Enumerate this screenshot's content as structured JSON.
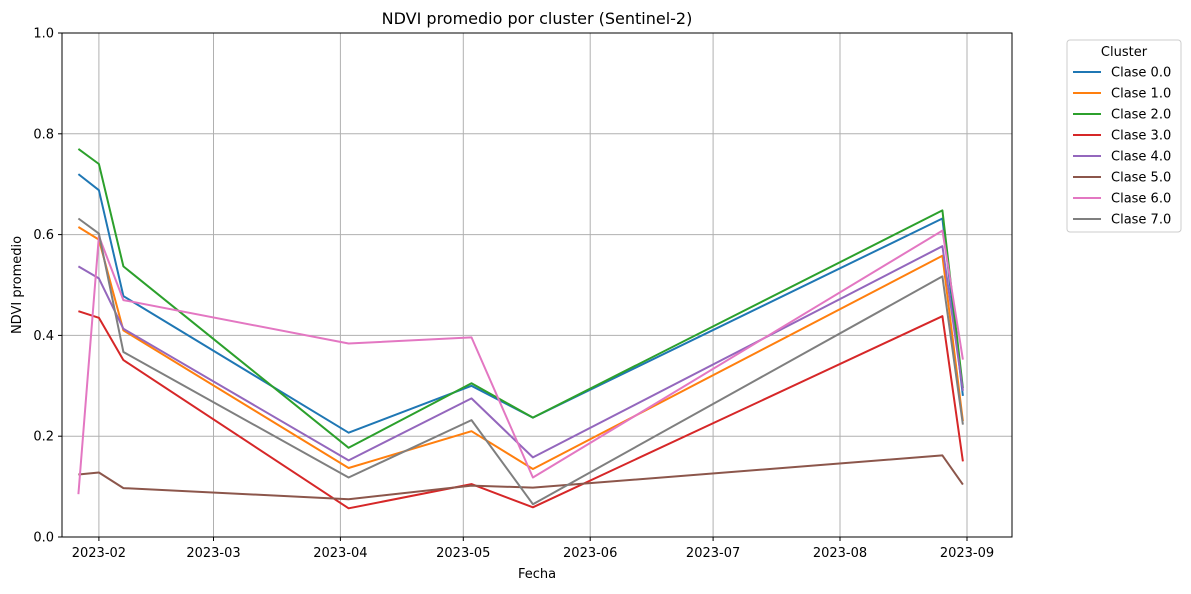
{
  "chart_data": {
    "type": "line",
    "title": "NDVI promedio por cluster (Sentinel-2)",
    "xlabel": "Fecha",
    "ylabel": "NDVI promedio",
    "x_type": "date",
    "xlim": [
      "2023-01-23",
      "2023-09-12"
    ],
    "ylim": [
      0,
      1
    ],
    "x_ticks": [
      "2023-02-01",
      "2023-03-01",
      "2023-04-01",
      "2023-05-01",
      "2023-06-01",
      "2023-07-01",
      "2023-08-01",
      "2023-09-01"
    ],
    "x_tick_labels": [
      "2023-02",
      "2023-03",
      "2023-04",
      "2023-05",
      "2023-06",
      "2023-07",
      "2023-08",
      "2023-09"
    ],
    "y_ticks": [
      0,
      0.2,
      0.4,
      0.6,
      0.8,
      1.0
    ],
    "y_tick_labels": [
      "0.0",
      "0.2",
      "0.4",
      "0.6",
      "0.8",
      "1.0"
    ],
    "grid": true,
    "legend": {
      "title": "Cluster",
      "placement": "outside-top-right"
    },
    "x": [
      "2023-01-27",
      "2023-02-01",
      "2023-02-07",
      "2023-04-03",
      "2023-05-03",
      "2023-05-18",
      "2023-08-26",
      "2023-08-31"
    ],
    "series": [
      {
        "name": "Clase 0.0",
        "color": "#1f77b4",
        "values": [
          0.72,
          0.688,
          0.478,
          0.207,
          0.3,
          0.237,
          0.632,
          0.28
        ]
      },
      {
        "name": "Clase 1.0",
        "color": "#ff7f0e",
        "values": [
          0.615,
          0.59,
          0.41,
          0.137,
          0.21,
          0.135,
          0.558,
          0.23
        ]
      },
      {
        "name": "Clase 2.0",
        "color": "#2ca02c",
        "values": [
          0.77,
          0.74,
          0.537,
          0.177,
          0.305,
          0.237,
          0.648,
          0.295
        ]
      },
      {
        "name": "Clase 3.0",
        "color": "#d62728",
        "values": [
          0.448,
          0.435,
          0.351,
          0.057,
          0.105,
          0.059,
          0.438,
          0.15
        ]
      },
      {
        "name": "Clase 4.0",
        "color": "#9467bd",
        "values": [
          0.537,
          0.513,
          0.413,
          0.152,
          0.275,
          0.158,
          0.577,
          0.29
        ]
      },
      {
        "name": "Clase 5.0",
        "color": "#8c564b",
        "values": [
          0.124,
          0.128,
          0.097,
          0.075,
          0.102,
          0.098,
          0.162,
          0.104
        ]
      },
      {
        "name": "Clase 6.0",
        "color": "#e377c2",
        "values": [
          0.085,
          0.597,
          0.47,
          0.384,
          0.396,
          0.118,
          0.608,
          0.352
        ]
      },
      {
        "name": "Clase 7.0",
        "color": "#7f7f7f",
        "values": [
          0.632,
          0.602,
          0.367,
          0.118,
          0.232,
          0.065,
          0.517,
          0.223
        ]
      }
    ]
  }
}
